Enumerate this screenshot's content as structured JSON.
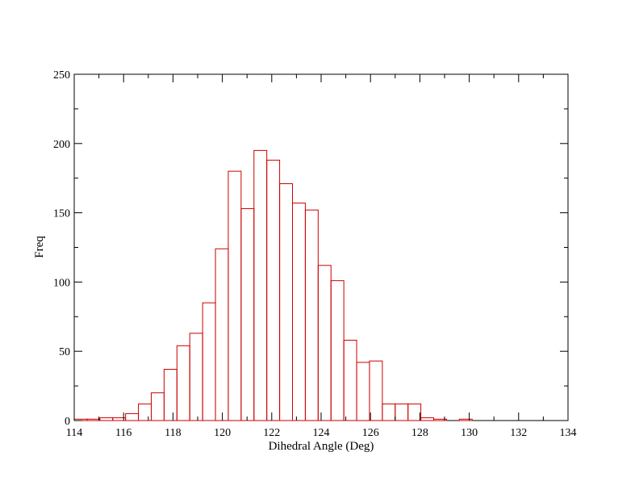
{
  "chart_data": {
    "type": "bar",
    "xlabel": "Dihedral Angle (Deg)",
    "ylabel": "Freq",
    "xlim": [
      114,
      134
    ],
    "ylim": [
      0,
      250
    ],
    "x_ticks": [
      114,
      116,
      118,
      120,
      122,
      124,
      126,
      128,
      130,
      132,
      134
    ],
    "y_ticks": [
      0,
      50,
      100,
      150,
      200,
      250
    ],
    "bin_width": 0.52,
    "bins": [
      {
        "start": 114.0,
        "count": 1
      },
      {
        "start": 114.52,
        "count": 1
      },
      {
        "start": 115.04,
        "count": 2
      },
      {
        "start": 115.56,
        "count": 2
      },
      {
        "start": 116.08,
        "count": 5
      },
      {
        "start": 116.6,
        "count": 12
      },
      {
        "start": 117.12,
        "count": 20
      },
      {
        "start": 117.64,
        "count": 37
      },
      {
        "start": 118.16,
        "count": 54
      },
      {
        "start": 118.68,
        "count": 63
      },
      {
        "start": 119.2,
        "count": 85
      },
      {
        "start": 119.72,
        "count": 124
      },
      {
        "start": 120.24,
        "count": 180
      },
      {
        "start": 120.76,
        "count": 153
      },
      {
        "start": 121.28,
        "count": 195
      },
      {
        "start": 121.8,
        "count": 188
      },
      {
        "start": 122.32,
        "count": 171
      },
      {
        "start": 122.84,
        "count": 157
      },
      {
        "start": 123.36,
        "count": 152
      },
      {
        "start": 123.88,
        "count": 112
      },
      {
        "start": 124.4,
        "count": 101
      },
      {
        "start": 124.92,
        "count": 58
      },
      {
        "start": 125.44,
        "count": 42
      },
      {
        "start": 125.96,
        "count": 43
      },
      {
        "start": 126.48,
        "count": 12
      },
      {
        "start": 127.0,
        "count": 12
      },
      {
        "start": 127.52,
        "count": 12
      },
      {
        "start": 128.04,
        "count": 2
      },
      {
        "start": 128.56,
        "count": 1
      },
      {
        "start": 129.08,
        "count": 0
      },
      {
        "start": 129.6,
        "count": 1
      }
    ],
    "bar_color": "#cc0000",
    "bar_fill": "none",
    "grid": false,
    "legend": "none"
  }
}
